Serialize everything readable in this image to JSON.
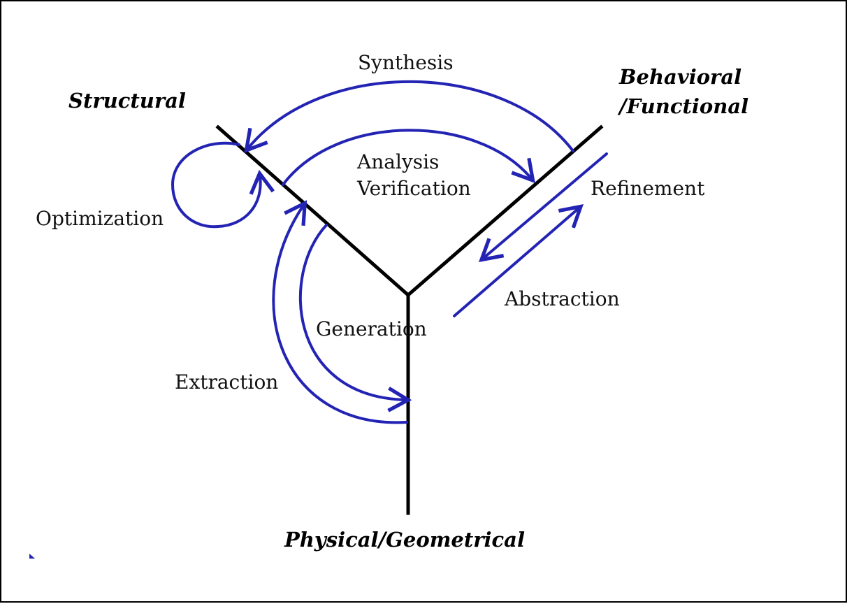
{
  "axes": {
    "structural": "Structural",
    "behavioral_line1": "Behavioral",
    "behavioral_line2": "/Functional",
    "physical": "Physical/Geometrical"
  },
  "transitions": {
    "synthesis": "Synthesis",
    "analysis": "Analysis",
    "verification": "Verification",
    "refinement": "Refinement",
    "optimization": "Optimization",
    "abstraction": "Abstraction",
    "generation": "Generation",
    "extraction": "Extraction"
  },
  "colors": {
    "arrow": "#2323b4",
    "axis": "#000000",
    "border": "#000000"
  }
}
